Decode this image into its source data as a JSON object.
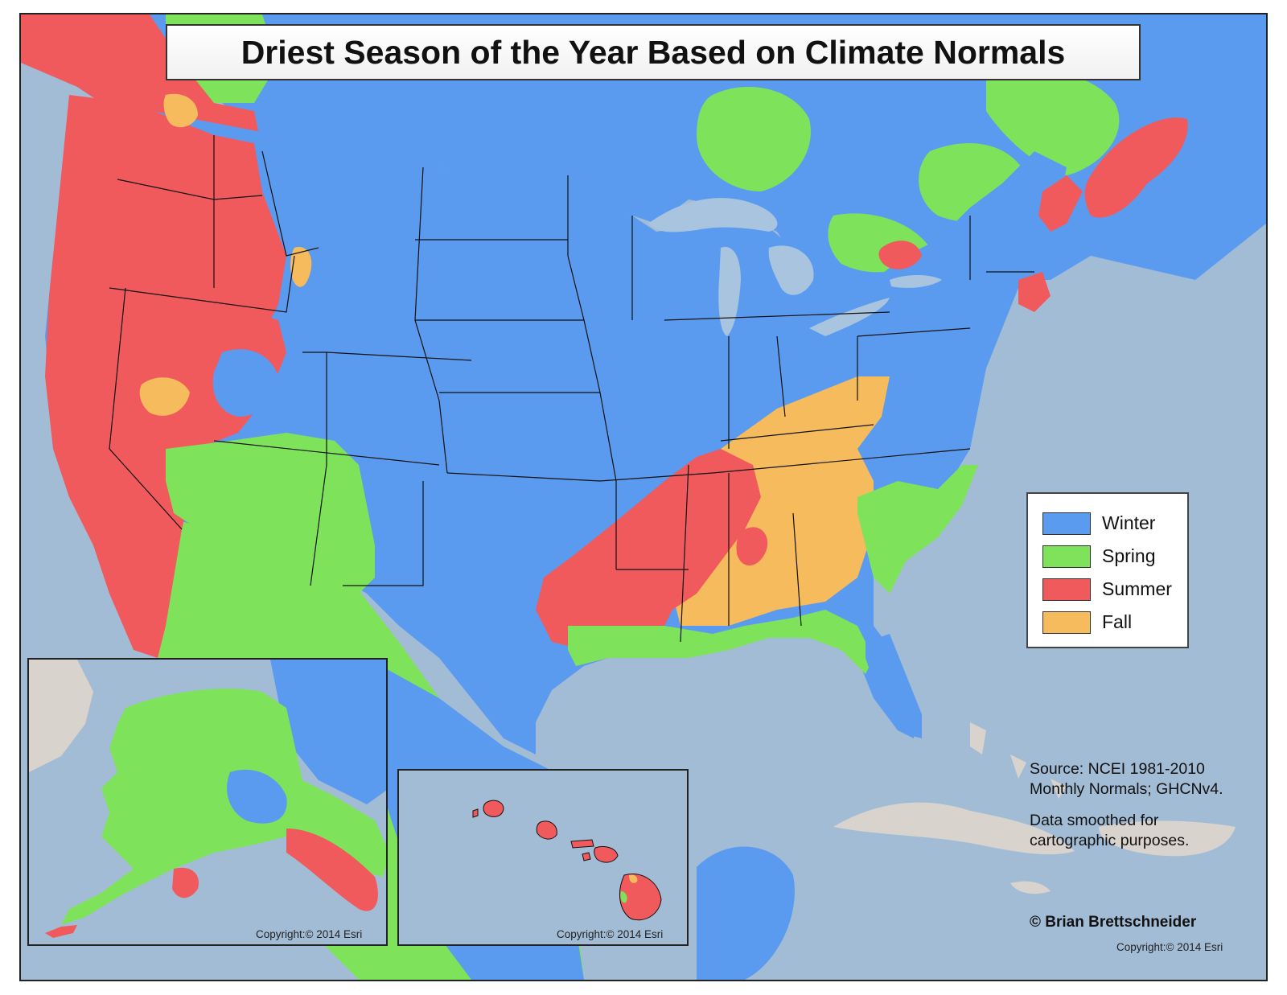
{
  "title": "Driest Season of the Year Based on Climate Normals",
  "legend": [
    {
      "label": "Winter",
      "color": "#5b9bef"
    },
    {
      "label": "Spring",
      "color": "#7ee35a"
    },
    {
      "label": "Summer",
      "color": "#f05a5c"
    },
    {
      "label": "Fall",
      "color": "#f6bb5c"
    }
  ],
  "colors": {
    "ocean": "#a3bcd6",
    "land_other": "#d9d3ce",
    "lakes": "#a8c4de",
    "winter": "#5b9bef",
    "spring": "#7ee35a",
    "summer": "#f05a5c",
    "fall": "#f6bb5c"
  },
  "source": {
    "line1": "Source: NCEI 1981-2010 Monthly Normals; GHCNv4.",
    "line2": "Data smoothed for cartographic purposes."
  },
  "credit": "© Brian Brettschneider",
  "copyright": "Copyright:© 2014 Esri",
  "insets": {
    "alaska_copyright": "Copyright:© 2014 Esri",
    "hawaii_copyright": "Copyright:© 2014 Esri"
  }
}
